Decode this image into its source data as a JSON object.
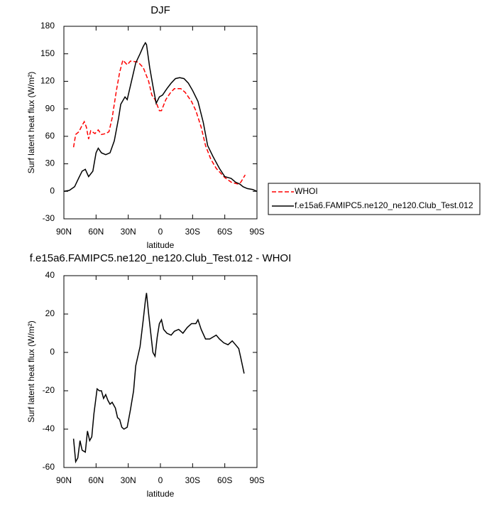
{
  "chart_data": [
    {
      "type": "line",
      "title": "DJF",
      "ylabel": "Surf latent heat flux (W/m²)",
      "xlabel": "latitude",
      "xlim": [
        90,
        -90
      ],
      "ylim": [
        -30,
        180
      ],
      "xticks": [
        {
          "value": 90,
          "label": "90N"
        },
        {
          "value": 60,
          "label": "60N"
        },
        {
          "value": 30,
          "label": "30N"
        },
        0,
        {
          "value": -30,
          "label": "30S"
        },
        {
          "value": -60,
          "label": "60S"
        },
        {
          "value": -90,
          "label": "90S"
        }
      ],
      "yticks": [
        -30,
        0,
        30,
        60,
        90,
        120,
        150,
        180
      ],
      "legend": "outside-right",
      "series": [
        {
          "name": "WHOI",
          "color": "#ff0000",
          "dashed": true,
          "x": [
            81,
            79,
            76,
            73,
            71,
            69,
            67,
            65,
            61,
            58,
            55,
            51,
            48,
            45,
            41,
            38,
            35,
            31,
            28,
            21,
            16,
            11,
            8,
            5,
            1,
            -1,
            -5,
            -9,
            -13,
            -19,
            -23,
            -29,
            -33,
            -38,
            -42,
            -47,
            -52,
            -60,
            -66,
            -72,
            -75,
            -79
          ],
          "values": [
            48,
            62,
            65,
            72,
            76,
            70,
            57,
            66,
            63,
            67,
            62,
            63,
            65,
            80,
            110,
            130,
            143,
            138,
            142,
            141,
            135,
            120,
            105,
            100,
            88,
            88,
            100,
            107,
            112,
            112,
            108,
            98,
            88,
            70,
            50,
            35,
            25,
            15,
            10,
            8,
            10,
            18
          ]
        },
        {
          "name": "f.e15a6.FAMIPC5.ne120_ne120.Club_Test.012",
          "color": "#000000",
          "dashed": false,
          "x": [
            90,
            85,
            80,
            76,
            73,
            70,
            67,
            63,
            60,
            58,
            55,
            51,
            47,
            43,
            39,
            37,
            33,
            31,
            27,
            23,
            19,
            16,
            14,
            13,
            10,
            7,
            4,
            1,
            -2,
            -6,
            -10,
            -14,
            -18,
            -22,
            -26,
            -30,
            -35,
            -40,
            -44,
            -49,
            -55,
            -60,
            -66,
            -70,
            -74,
            -77,
            -81,
            -86,
            -90
          ],
          "values": [
            0,
            1,
            5,
            15,
            22,
            24,
            16,
            22,
            42,
            47,
            42,
            40,
            42,
            55,
            80,
            95,
            103,
            100,
            120,
            140,
            150,
            158,
            162,
            160,
            135,
            115,
            96,
            103,
            105,
            112,
            118,
            123,
            124,
            123,
            118,
            110,
            98,
            75,
            50,
            38,
            25,
            16,
            14,
            10,
            8,
            5,
            3,
            2,
            0
          ]
        }
      ]
    },
    {
      "type": "line",
      "title": "f.e15a6.FAMIPC5.ne120_ne120.Club_Test.012 - WHOI",
      "ylabel": "Surf latent heat flux (W/m²)",
      "xlabel": "latitude",
      "xlim": [
        90,
        -90
      ],
      "ylim": [
        -60,
        40
      ],
      "xticks": [
        {
          "value": 90,
          "label": "90N"
        },
        {
          "value": 60,
          "label": "60N"
        },
        {
          "value": 30,
          "label": "30N"
        },
        0,
        {
          "value": -30,
          "label": "30S"
        },
        {
          "value": -60,
          "label": "60S"
        },
        {
          "value": -90,
          "label": "90S"
        }
      ],
      "yticks": [
        -60,
        -40,
        -20,
        0,
        20,
        40
      ],
      "series": [
        {
          "color": "#000000",
          "dashed": false,
          "x": [
            81,
            79,
            77,
            75,
            73,
            70,
            68,
            66,
            64,
            62,
            59,
            57,
            55,
            53,
            51,
            49,
            47,
            45,
            42,
            40,
            38,
            36,
            34,
            31,
            28,
            25,
            23,
            19,
            16,
            14,
            13,
            11,
            9,
            7,
            5,
            3,
            1,
            -1,
            -3,
            -6,
            -10,
            -13,
            -17,
            -21,
            -25,
            -29,
            -33,
            -35,
            -38,
            -42,
            -46,
            -49,
            -52,
            -55,
            -59,
            -63,
            -67,
            -70,
            -73,
            -75,
            -78
          ],
          "values": [
            -45,
            -57,
            -55,
            -46,
            -51,
            -52,
            -41,
            -46,
            -44,
            -32,
            -19,
            -20,
            -20,
            -24,
            -22,
            -25,
            -27,
            -26,
            -29,
            -34,
            -35,
            -39,
            -40,
            -39,
            -30,
            -20,
            -7,
            3,
            17,
            27,
            31,
            20,
            10,
            0,
            -2,
            8,
            15,
            17,
            12,
            10,
            9,
            11,
            12,
            10,
            13,
            15,
            15,
            17,
            12,
            7,
            7,
            8,
            9,
            7,
            5,
            4,
            6,
            4,
            2,
            -3,
            -11
          ]
        }
      ]
    }
  ]
}
